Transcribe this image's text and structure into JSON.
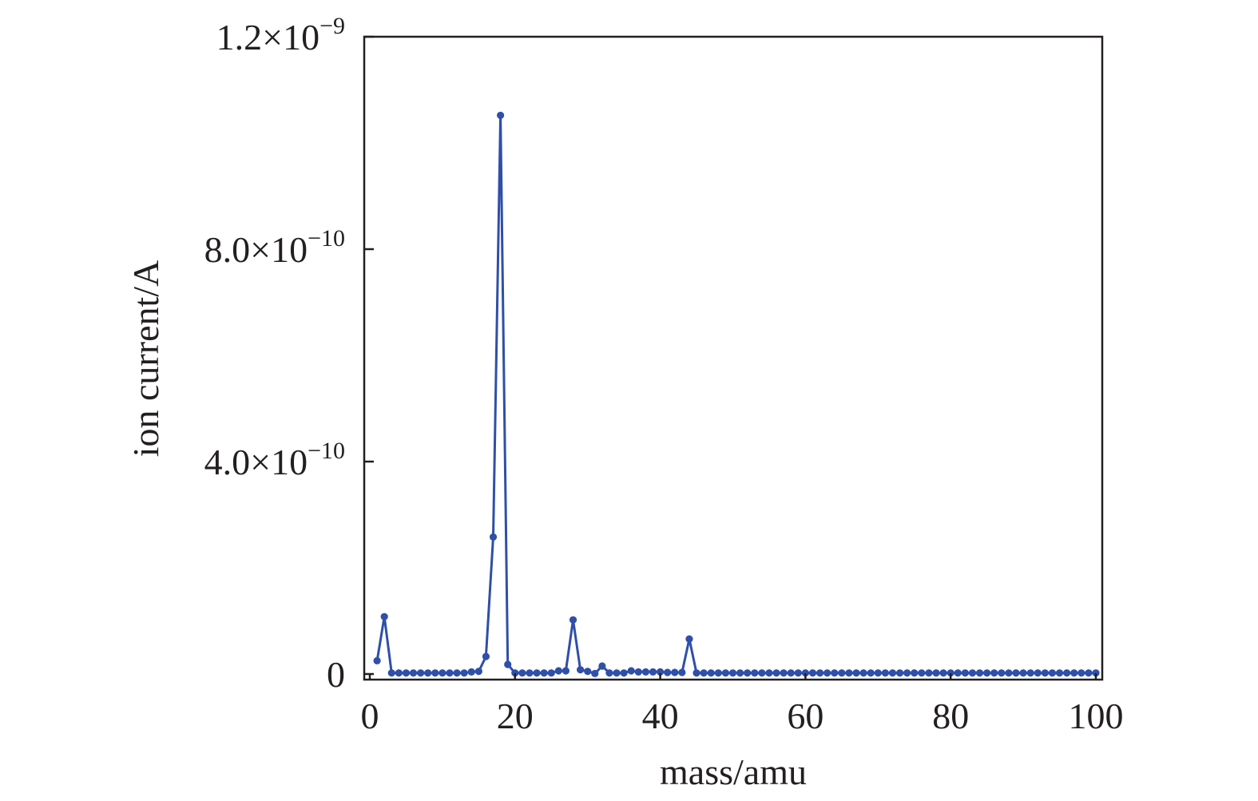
{
  "chart_data": {
    "type": "line",
    "title": "",
    "xlabel": "mass/amu",
    "ylabel": "ion current/A",
    "xlim": [
      0,
      100
    ],
    "ylim": [
      0,
      1.2e-09
    ],
    "x_ticks": [
      {
        "value": 0,
        "label": "0"
      },
      {
        "value": 20,
        "label": "20"
      },
      {
        "value": 40,
        "label": "40"
      },
      {
        "value": 60,
        "label": "60"
      },
      {
        "value": 80,
        "label": "80"
      },
      {
        "value": 100,
        "label": "100"
      }
    ],
    "y_ticks": [
      {
        "value": 0,
        "mantissa": "0",
        "exponent": ""
      },
      {
        "value": 4e-10,
        "mantissa": "4.0×10",
        "exponent": "−10"
      },
      {
        "value": 8e-10,
        "mantissa": "8.0×10",
        "exponent": "−10"
      },
      {
        "value": 1.2e-09,
        "mantissa": "1.2×10",
        "exponent": "−9"
      }
    ],
    "grid": false,
    "legend": "none",
    "series": [
      {
        "color": "#2f4fa8",
        "marker": "circle",
        "x": [
          1,
          2,
          3,
          4,
          5,
          6,
          7,
          8,
          9,
          10,
          11,
          12,
          13,
          14,
          15,
          16,
          17,
          18,
          19,
          20,
          21,
          22,
          23,
          24,
          25,
          26,
          27,
          28,
          29,
          30,
          31,
          32,
          33,
          34,
          35,
          36,
          37,
          38,
          39,
          40,
          41,
          42,
          43,
          44,
          45,
          46,
          47,
          48,
          49,
          50,
          51,
          52,
          53,
          54,
          55,
          56,
          57,
          58,
          59,
          60,
          61,
          62,
          63,
          64,
          65,
          66,
          67,
          68,
          69,
          70,
          71,
          72,
          73,
          74,
          75,
          76,
          77,
          78,
          79,
          80,
          81,
          82,
          83,
          84,
          85,
          86,
          87,
          88,
          89,
          90,
          91,
          92,
          93,
          94,
          95,
          96,
          97,
          98,
          99,
          100
        ],
        "y": [
          2.5e-11,
          1.08e-10,
          2e-12,
          2e-12,
          2e-12,
          2e-12,
          2e-12,
          2e-12,
          2e-12,
          2e-12,
          2e-12,
          2e-12,
          2e-12,
          4e-12,
          5e-12,
          3.3e-11,
          2.58e-10,
          1.052e-09,
          1.8e-11,
          2e-12,
          2e-12,
          2e-12,
          2e-12,
          2e-12,
          2e-12,
          6e-12,
          6e-12,
          1.02e-10,
          8e-12,
          5e-12,
          1e-12,
          1.5e-11,
          2e-12,
          2e-12,
          2e-12,
          6e-12,
          4e-12,
          4e-12,
          4e-12,
          4e-12,
          3e-12,
          3e-12,
          3e-12,
          6.6e-11,
          2e-12,
          2e-12,
          2e-12,
          2e-12,
          2e-12,
          2e-12,
          2e-12,
          2e-12,
          2e-12,
          2e-12,
          2e-12,
          2e-12,
          2e-12,
          2e-12,
          2e-12,
          2e-12,
          2e-12,
          2e-12,
          2e-12,
          2e-12,
          2e-12,
          2e-12,
          2e-12,
          2e-12,
          2e-12,
          2e-12,
          2e-12,
          2e-12,
          2e-12,
          2e-12,
          2e-12,
          2e-12,
          2e-12,
          2e-12,
          2e-12,
          2e-12,
          2e-12,
          2e-12,
          2e-12,
          2e-12,
          2e-12,
          2e-12,
          2e-12,
          2e-12,
          2e-12,
          2e-12,
          2e-12,
          2e-12,
          2e-12,
          2e-12,
          2e-12,
          2e-12,
          2e-12,
          2e-12,
          2e-12,
          2e-12
        ]
      }
    ]
  }
}
